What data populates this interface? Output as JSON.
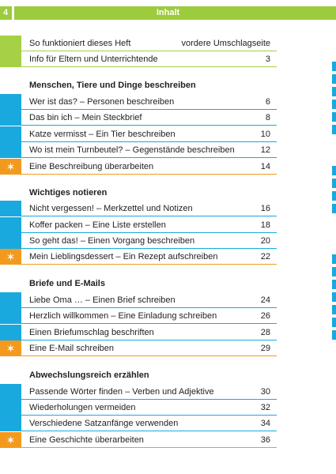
{
  "header": {
    "page_number": "4",
    "title": "Inhalt",
    "bar_color": "#9ccb3b"
  },
  "intro": [
    {
      "label": "So funktioniert dieses Heft",
      "page": "vordere Umschlagseite"
    },
    {
      "label": "Info für Eltern und Unterrichtende",
      "page": "3"
    }
  ],
  "sections": [
    {
      "heading": "Menschen, Tiere und Dinge beschreiben",
      "items": [
        {
          "label": "Wer ist das? – Personen beschreiben",
          "page": "6",
          "type": "blue"
        },
        {
          "label": "Das bin ich – Mein Steckbrief",
          "page": "8",
          "type": "blue"
        },
        {
          "label": "Katze vermisst – Ein Tier beschreiben",
          "page": "10",
          "type": "blue"
        },
        {
          "label": "Wo ist mein Turnbeutel? – Gegenstände beschreiben",
          "page": "12",
          "type": "blue"
        },
        {
          "label": "Eine Beschreibung überarbeiten",
          "page": "14",
          "type": "orange"
        }
      ]
    },
    {
      "heading": "Wichtiges notieren",
      "items": [
        {
          "label": "Nicht vergessen! – Merkzettel und Notizen",
          "page": "16",
          "type": "blue"
        },
        {
          "label": "Koffer packen – Eine Liste erstellen",
          "page": "18",
          "type": "blue"
        },
        {
          "label": "So geht das! – Einen Vorgang beschreiben",
          "page": "20",
          "type": "blue"
        },
        {
          "label": "Mein Lieblingsdessert – Ein Rezept aufschreiben",
          "page": "22",
          "type": "orange"
        }
      ]
    },
    {
      "heading": "Briefe und E-Mails",
      "items": [
        {
          "label": "Liebe Oma … – Einen Brief schreiben",
          "page": "24",
          "type": "blue"
        },
        {
          "label": "Herzlich willkommen – Eine Einladung schreiben",
          "page": "26",
          "type": "blue"
        },
        {
          "label": "Einen Briefumschlag beschriften",
          "page": "28",
          "type": "blue"
        },
        {
          "label": "Eine E-Mail schreiben",
          "page": "29",
          "type": "orange"
        }
      ]
    },
    {
      "heading": "Abwechslungsreich erzählen",
      "items": [
        {
          "label": "Passende Wörter finden – Verben und Adjektive",
          "page": "30",
          "type": "blue"
        },
        {
          "label": "Wiederholungen vermeiden",
          "page": "32",
          "type": "blue"
        },
        {
          "label": "Verschiedene Satzanfänge verwenden",
          "page": "34",
          "type": "blue"
        },
        {
          "label": "Eine Geschichte überarbeiten",
          "page": "36",
          "type": "orange"
        }
      ]
    }
  ],
  "colors": {
    "green": "#a6d046",
    "blue": "#19a9df",
    "orange": "#f39a1e"
  },
  "icons": {
    "revision_marker": "✶"
  }
}
